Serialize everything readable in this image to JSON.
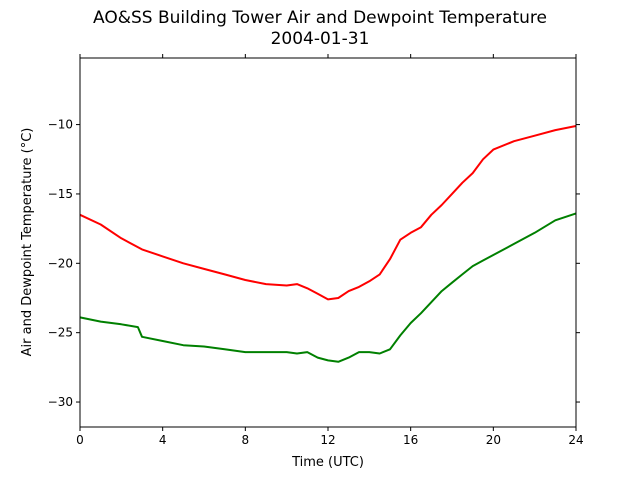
{
  "chart_data": {
    "type": "line",
    "title": "AO&SS Building Tower Air and Dewpoint Temperature",
    "subtitle": "2004-01-31",
    "xlabel": "Time (UTC)",
    "ylabel": "Air and Dewpoint Temperature (°C)",
    "xlim": [
      0,
      24
    ],
    "ylim": [
      -31.8,
      -5.2
    ],
    "xticks": [
      0,
      4,
      8,
      12,
      16,
      20,
      24
    ],
    "yticks": [
      -30,
      -25,
      -20,
      -15,
      -10
    ],
    "grid": false,
    "series": [
      {
        "color": "#ff0000",
        "x": [
          0,
          1,
          2,
          3,
          4,
          5,
          6,
          7,
          8,
          9,
          10,
          10.5,
          11,
          11.5,
          12,
          12.5,
          13,
          13.5,
          14,
          14.5,
          15,
          15.5,
          16,
          16.5,
          17,
          17.5,
          18,
          18.5,
          19,
          19.5,
          20,
          21,
          22,
          23,
          24
        ],
        "values": [
          -16.5,
          -17.2,
          -18.2,
          -19.0,
          -19.5,
          -20.0,
          -20.4,
          -20.8,
          -21.2,
          -21.5,
          -21.6,
          -21.5,
          -21.8,
          -22.2,
          -22.6,
          -22.5,
          -22.0,
          -21.7,
          -21.3,
          -20.8,
          -19.7,
          -18.3,
          -17.8,
          -17.4,
          -16.5,
          -15.8,
          -15.0,
          -14.2,
          -13.5,
          -12.5,
          -11.8,
          -11.2,
          -10.8,
          -10.4,
          -10.1
        ]
      },
      {
        "color": "#008000",
        "x": [
          0,
          1,
          2,
          2.8,
          3,
          4,
          5,
          6,
          7,
          8,
          9,
          10,
          10.5,
          11,
          11.5,
          12,
          12.5,
          13,
          13.5,
          14,
          14.5,
          15,
          15.5,
          16,
          16.5,
          17,
          17.5,
          18,
          18.5,
          19,
          19.5,
          20,
          21,
          22,
          23,
          24
        ],
        "values": [
          -23.9,
          -24.2,
          -24.4,
          -24.6,
          -25.3,
          -25.6,
          -25.9,
          -26.0,
          -26.2,
          -26.4,
          -26.4,
          -26.4,
          -26.5,
          -26.4,
          -26.8,
          -27.0,
          -27.1,
          -26.8,
          -26.4,
          -26.4,
          -26.5,
          -26.2,
          -25.2,
          -24.3,
          -23.6,
          -22.8,
          -22.0,
          -21.4,
          -20.8,
          -20.2,
          -19.8,
          -19.4,
          -18.6,
          -17.8,
          -16.9,
          -16.4
        ]
      }
    ]
  }
}
